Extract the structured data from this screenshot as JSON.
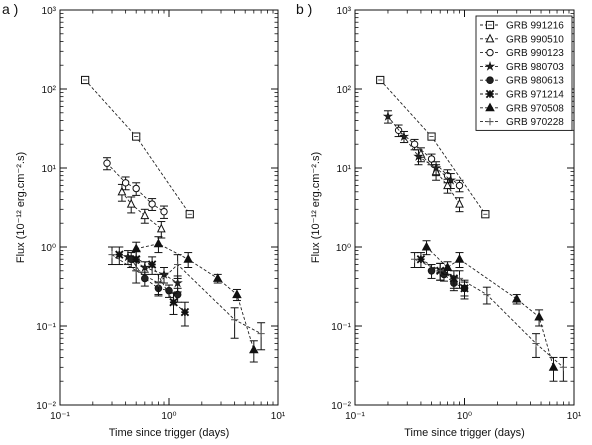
{
  "chart_data": [
    {
      "type": "scatter",
      "panel_label": "a )",
      "xlabel": "Time since trigger (days)",
      "ylabel": "Flux (10⁻¹² erg.cm⁻².s)",
      "xscale": "log",
      "yscale": "log",
      "xlim": [
        0.1,
        10
      ],
      "ylim": [
        0.01,
        1000
      ],
      "x_tick_labels": [
        "10⁻¹",
        "10⁰",
        "10¹"
      ],
      "y_tick_labels": [
        "10⁻²",
        "10⁻¹",
        "10⁰",
        "10¹",
        "10²",
        "10³"
      ],
      "grid": false,
      "series": [
        {
          "name": "GRB 991216",
          "marker": "square-open",
          "line": "dashed",
          "x": [
            0.17,
            0.5,
            1.55
          ],
          "y": [
            130,
            25,
            2.6
          ],
          "err": [
            8,
            2,
            0.2
          ]
        },
        {
          "name": "GRB 990510",
          "marker": "triangle-open",
          "line": "dashed",
          "x": [
            0.37,
            0.45,
            0.6,
            0.85
          ],
          "y": [
            5,
            3.5,
            2.5,
            1.7
          ],
          "err": [
            1.2,
            0.8,
            0.5,
            0.4
          ]
        },
        {
          "name": "GRB 990123",
          "marker": "circle-open",
          "line": "dashed",
          "x": [
            0.27,
            0.4,
            0.5,
            0.7,
            0.9
          ],
          "y": [
            11.5,
            6.5,
            5.5,
            3.5,
            2.8
          ],
          "err": [
            2,
            1.2,
            1,
            0.6,
            0.5
          ]
        },
        {
          "name": "GRB 980703",
          "marker": "star",
          "line": "dashed",
          "x": [
            0.42,
            0.6,
            0.9,
            1.2
          ],
          "y": [
            0.75,
            0.55,
            0.45,
            0.35
          ],
          "err": [
            0.15,
            0.1,
            0.1,
            0.08
          ]
        },
        {
          "name": "GRB 980613",
          "marker": "circle-filled",
          "line": "dashed",
          "x": [
            0.45,
            0.6,
            0.8,
            1.0,
            1.2
          ],
          "y": [
            0.7,
            0.4,
            0.3,
            0.28,
            0.25
          ],
          "err": [
            0.15,
            0.08,
            0.06,
            0.05,
            0.05
          ]
        },
        {
          "name": "GRB 971214",
          "marker": "cross-filled",
          "line": "dashed",
          "x": [
            0.35,
            0.5,
            0.7,
            1.1,
            1.4
          ],
          "y": [
            0.8,
            0.7,
            0.6,
            0.2,
            0.15
          ],
          "err": [
            0.2,
            0.2,
            0.15,
            0.06,
            0.05
          ]
        },
        {
          "name": "GRB 970508",
          "marker": "triangle-filled",
          "line": "dashed",
          "x": [
            0.5,
            0.8,
            1.5,
            2.8,
            4.2,
            6.0
          ],
          "y": [
            0.95,
            1.1,
            0.7,
            0.4,
            0.25,
            0.05
          ],
          "err": [
            0.2,
            0.25,
            0.15,
            0.05,
            0.04,
            0.015
          ]
        },
        {
          "name": "GRB 970228",
          "marker": "plus",
          "line": "dashed",
          "x": [
            0.3,
            0.5,
            0.8,
            1.2,
            4.0,
            7.0
          ],
          "y": [
            0.8,
            0.5,
            0.35,
            0.6,
            0.12,
            0.08
          ],
          "err": [
            0.2,
            0.15,
            0.1,
            0.2,
            0.05,
            0.03
          ]
        }
      ]
    },
    {
      "type": "scatter",
      "panel_label": "b )",
      "xlabel": "Time since trigger (days)",
      "ylabel": "Flux (10⁻¹² erg.cm⁻².s)",
      "xscale": "log",
      "yscale": "log",
      "xlim": [
        0.1,
        10
      ],
      "ylim": [
        0.01,
        1000
      ],
      "x_tick_labels": [
        "10⁻¹",
        "10⁰",
        "10¹"
      ],
      "y_tick_labels": [
        "10⁻²",
        "10⁻¹",
        "10⁰",
        "10¹",
        "10²",
        "10³"
      ],
      "grid": false,
      "legend": "top-right",
      "series": [
        {
          "name": "GRB 991216",
          "marker": "square-open",
          "line": "dashed",
          "x": [
            0.17,
            0.5,
            1.55
          ],
          "y": [
            130,
            25,
            2.6
          ],
          "err": [
            8,
            2,
            0.2
          ]
        },
        {
          "name": "GRB 990510",
          "marker": "triangle-open",
          "line": "dashed",
          "x": [
            0.4,
            0.55,
            0.7,
            0.9
          ],
          "y": [
            15,
            9,
            6,
            3.5
          ],
          "err": [
            3,
            2,
            1.2,
            0.7
          ]
        },
        {
          "name": "GRB 990123",
          "marker": "circle-open",
          "line": "dashed",
          "x": [
            0.25,
            0.35,
            0.5,
            0.7,
            0.9
          ],
          "y": [
            30,
            20,
            13,
            8,
            6
          ],
          "err": [
            5,
            3,
            2,
            1.5,
            1
          ]
        },
        {
          "name": "GRB 980703",
          "marker": "star",
          "line": "dashed",
          "x": [
            0.2,
            0.28,
            0.38,
            0.55,
            0.75
          ],
          "y": [
            45,
            25,
            14,
            10,
            7
          ],
          "err": [
            8,
            4,
            3,
            2,
            1.5
          ]
        },
        {
          "name": "GRB 980613",
          "marker": "circle-filled",
          "line": "dashed",
          "x": [
            0.5,
            0.65,
            0.8,
            1.0
          ],
          "y": [
            0.5,
            0.45,
            0.35,
            0.3
          ],
          "err": [
            0.1,
            0.08,
            0.07,
            0.06
          ]
        },
        {
          "name": "GRB 971214",
          "marker": "cross-filled",
          "line": "dashed",
          "x": [
            0.4,
            0.6,
            0.8,
            1.0
          ],
          "y": [
            0.7,
            0.5,
            0.4,
            0.3
          ],
          "err": [
            0.15,
            0.12,
            0.1,
            0.08
          ]
        },
        {
          "name": "GRB 970508",
          "marker": "triangle-filled",
          "line": "dashed",
          "x": [
            0.45,
            0.7,
            0.9,
            3.0,
            4.8,
            6.5
          ],
          "y": [
            1.0,
            0.55,
            0.7,
            0.22,
            0.13,
            0.03
          ],
          "err": [
            0.2,
            0.1,
            0.15,
            0.03,
            0.03,
            0.01
          ]
        },
        {
          "name": "GRB 970228",
          "marker": "plus",
          "line": "dashed",
          "x": [
            0.35,
            0.6,
            0.9,
            1.6,
            4.5,
            8.0
          ],
          "y": [
            0.7,
            0.5,
            0.4,
            0.25,
            0.06,
            0.03
          ],
          "err": [
            0.15,
            0.12,
            0.1,
            0.06,
            0.02,
            0.01
          ]
        }
      ]
    }
  ]
}
